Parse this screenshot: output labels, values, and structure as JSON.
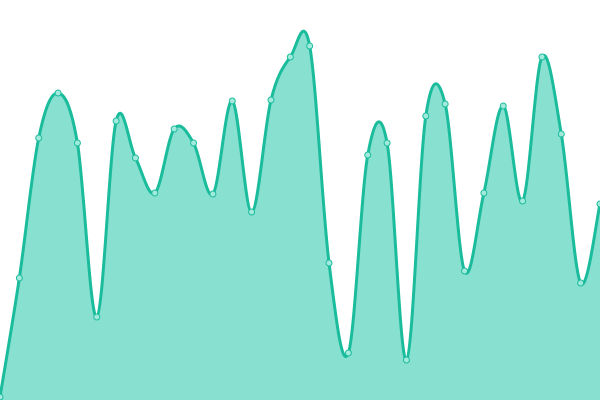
{
  "chart_data": {
    "type": "area",
    "title": "",
    "xlabel": "",
    "ylabel": "",
    "x": [
      0,
      1,
      2,
      3,
      4,
      5,
      6,
      7,
      8,
      9,
      10,
      11,
      12,
      13,
      14,
      15,
      16,
      17,
      18,
      19,
      20,
      21,
      22,
      23,
      24,
      25,
      26,
      27,
      28,
      29,
      30,
      31
    ],
    "values": [
      3,
      122,
      262,
      307,
      257,
      83,
      279,
      242,
      207,
      271,
      257,
      206,
      299,
      188,
      300,
      343,
      354,
      137,
      47,
      245,
      257,
      40,
      284,
      296,
      129,
      207,
      294,
      199,
      343,
      266,
      117,
      196
    ],
    "ylim": [
      0,
      400
    ],
    "grid": false,
    "axes_visible": false,
    "smooth": true,
    "markers": true,
    "colors": {
      "line": "#1abc9c",
      "fill": "#88e0d0",
      "marker_fill": "#a3eadc",
      "marker_stroke": "#1abc9c"
    }
  }
}
